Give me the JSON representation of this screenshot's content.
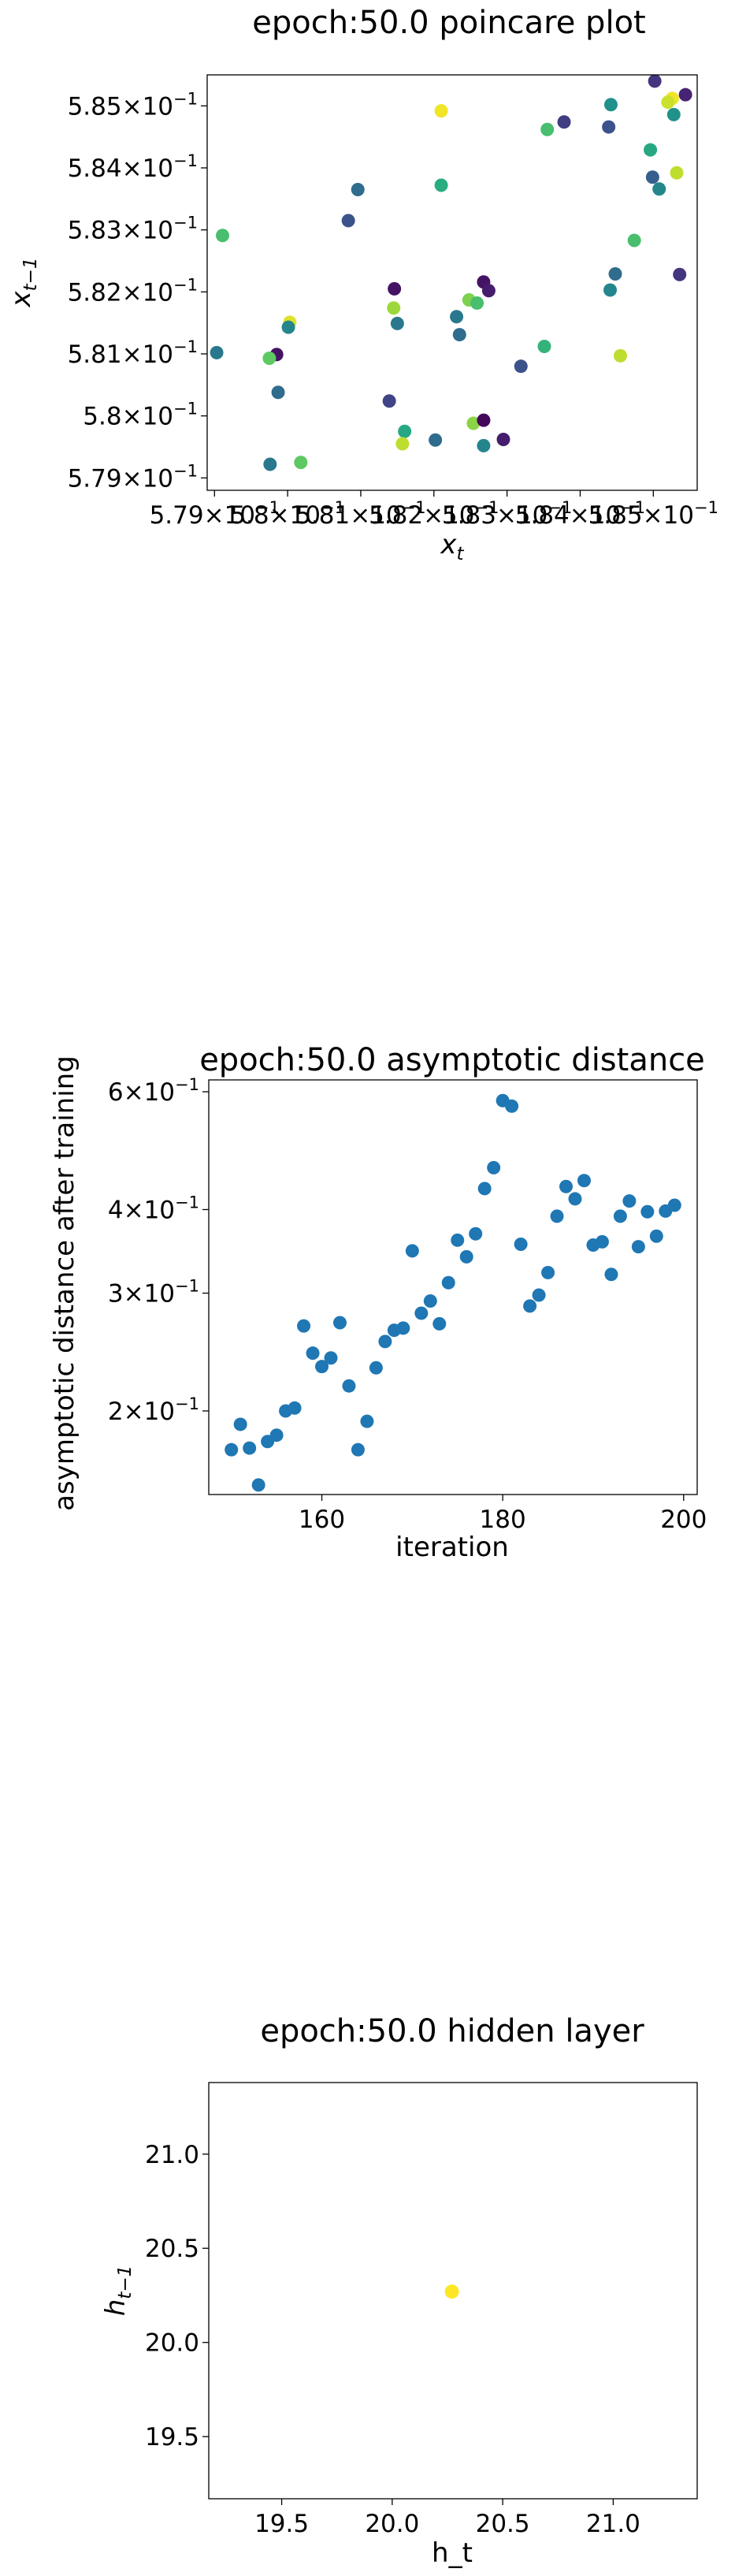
{
  "chart_data": [
    {
      "type": "scatter",
      "title": "epoch:50.0 poincare plot",
      "xlabel": "x_t",
      "ylabel": "x_{t-1}",
      "xlim": [
        0.5789,
        0.5856
      ],
      "ylim": [
        0.5788,
        0.5855
      ],
      "y_ticks": [
        {
          "value": 0.579,
          "mant": "5.79",
          "exp": "−1"
        },
        {
          "value": 0.58,
          "mant": "5.8",
          "exp": "−1"
        },
        {
          "value": 0.581,
          "mant": "5.81",
          "exp": "−1"
        },
        {
          "value": 0.582,
          "mant": "5.82",
          "exp": "−1"
        },
        {
          "value": 0.583,
          "mant": "5.83",
          "exp": "−1"
        },
        {
          "value": 0.584,
          "mant": "5.84",
          "exp": "−1"
        },
        {
          "value": 0.585,
          "mant": "5.85",
          "exp": "−1"
        }
      ],
      "x_ticks": [
        {
          "value": 0.579,
          "mant": "5.79",
          "exp": "−1"
        },
        {
          "value": 0.58,
          "mant": "5.8",
          "exp": "−1"
        },
        {
          "value": 0.581,
          "mant": "5.81",
          "exp": "−1"
        },
        {
          "value": 0.582,
          "mant": "5.82",
          "exp": "−1"
        },
        {
          "value": 0.583,
          "mant": "5.83",
          "exp": "−1"
        },
        {
          "value": 0.584,
          "mant": "5.84",
          "exp": "−1"
        },
        {
          "value": 0.585,
          "mant": "5.85",
          "exp": "−1"
        }
      ],
      "colormap": "viridis",
      "points": [
        {
          "x": 0.58502,
          "y": 0.5854,
          "c": 0.15
        },
        {
          "x": 0.58544,
          "y": 0.58518,
          "c": 0.1
        },
        {
          "x": 0.58526,
          "y": 0.58512,
          "c": 0.98
        },
        {
          "x": 0.5852,
          "y": 0.58506,
          "c": 0.92
        },
        {
          "x": 0.58528,
          "y": 0.58486,
          "c": 0.5
        },
        {
          "x": 0.58496,
          "y": 0.58429,
          "c": 0.6
        },
        {
          "x": 0.58532,
          "y": 0.58392,
          "c": 0.9
        },
        {
          "x": 0.58499,
          "y": 0.58385,
          "c": 0.3
        },
        {
          "x": 0.58508,
          "y": 0.58366,
          "c": 0.45
        },
        {
          "x": 0.58474,
          "y": 0.58283,
          "c": 0.7
        },
        {
          "x": 0.58536,
          "y": 0.58228,
          "c": 0.15
        },
        {
          "x": 0.58448,
          "y": 0.58229,
          "c": 0.35
        },
        {
          "x": 0.58441,
          "y": 0.58203,
          "c": 0.45
        },
        {
          "x": 0.58442,
          "y": 0.58502,
          "c": 0.5
        },
        {
          "x": 0.58439,
          "y": 0.58466,
          "c": 0.25
        },
        {
          "x": 0.58378,
          "y": 0.58474,
          "c": 0.18
        },
        {
          "x": 0.58355,
          "y": 0.58462,
          "c": 0.7
        },
        {
          "x": 0.58455,
          "y": 0.58097,
          "c": 0.9
        },
        {
          "x": 0.58351,
          "y": 0.58112,
          "c": 0.65
        },
        {
          "x": 0.58319,
          "y": 0.5808,
          "c": 0.25
        },
        {
          "x": 0.58268,
          "y": 0.58216,
          "c": 0.05
        },
        {
          "x": 0.58275,
          "y": 0.58202,
          "c": 0.08
        },
        {
          "x": 0.58248,
          "y": 0.58187,
          "c": 0.8
        },
        {
          "x": 0.58259,
          "y": 0.58182,
          "c": 0.7
        },
        {
          "x": 0.58231,
          "y": 0.5816,
          "c": 0.4
        },
        {
          "x": 0.58235,
          "y": 0.58131,
          "c": 0.35
        },
        {
          "x": 0.5821,
          "y": 0.58372,
          "c": 0.62
        },
        {
          "x": 0.5821,
          "y": 0.58492,
          "c": 0.98
        },
        {
          "x": 0.58145,
          "y": 0.58174,
          "c": 0.85
        },
        {
          "x": 0.58146,
          "y": 0.58205,
          "c": 0.05
        },
        {
          "x": 0.5815,
          "y": 0.58149,
          "c": 0.4
        },
        {
          "x": 0.58139,
          "y": 0.58024,
          "c": 0.2
        },
        {
          "x": 0.58254,
          "y": 0.57988,
          "c": 0.82
        },
        {
          "x": 0.58268,
          "y": 0.57993,
          "c": 0.02
        },
        {
          "x": 0.58268,
          "y": 0.57952,
          "c": 0.45
        },
        {
          "x": 0.58295,
          "y": 0.57962,
          "c": 0.08
        },
        {
          "x": 0.58202,
          "y": 0.57961,
          "c": 0.35
        },
        {
          "x": 0.5816,
          "y": 0.57975,
          "c": 0.6
        },
        {
          "x": 0.58157,
          "y": 0.57955,
          "c": 0.9
        },
        {
          "x": 0.58096,
          "y": 0.58365,
          "c": 0.35
        },
        {
          "x": 0.58083,
          "y": 0.58315,
          "c": 0.25
        },
        {
          "x": 0.57911,
          "y": 0.58291,
          "c": 0.7
        },
        {
          "x": 0.58003,
          "y": 0.58151,
          "c": 0.95
        },
        {
          "x": 0.58001,
          "y": 0.58143,
          "c": 0.45
        },
        {
          "x": 0.57903,
          "y": 0.58102,
          "c": 0.4
        },
        {
          "x": 0.57985,
          "y": 0.58099,
          "c": 0.05
        },
        {
          "x": 0.57975,
          "y": 0.58093,
          "c": 0.75
        },
        {
          "x": 0.57987,
          "y": 0.58038,
          "c": 0.35
        },
        {
          "x": 0.57976,
          "y": 0.57922,
          "c": 0.4
        },
        {
          "x": 0.58018,
          "y": 0.57925,
          "c": 0.75
        }
      ]
    },
    {
      "type": "scatter",
      "title": "epoch:50.0 asymptotic distance",
      "xlabel": "iteration",
      "ylabel": "asymptotic distance after training",
      "xlim": [
        147.5,
        201.5
      ],
      "ylim": [
        0.15,
        0.625
      ],
      "y_scale": "log",
      "color": "#1f77b4",
      "x_ticks": [
        {
          "value": 160,
          "label": "160"
        },
        {
          "value": 180,
          "label": "180"
        },
        {
          "value": 200,
          "label": "200"
        }
      ],
      "y_ticks": [
        {
          "value": 0.2,
          "mant": "2",
          "exp": "−1"
        },
        {
          "value": 0.3,
          "mant": "3",
          "exp": "−1"
        },
        {
          "value": 0.4,
          "mant": "4",
          "exp": "−1"
        },
        {
          "value": 0.6,
          "mant": "6",
          "exp": "−1"
        }
      ],
      "x": [
        150,
        151,
        152,
        153,
        154,
        155,
        156,
        157,
        158,
        159,
        160,
        161,
        162,
        163,
        164,
        165,
        166,
        167,
        168,
        169,
        170,
        171,
        172,
        173,
        174,
        175,
        176,
        177,
        178,
        179,
        180,
        181,
        182,
        183,
        184,
        185,
        186,
        187,
        188,
        189,
        190,
        191,
        192,
        193,
        194,
        195,
        196,
        197,
        198,
        199
      ],
      "y": [
        0.175,
        0.191,
        0.176,
        0.155,
        0.18,
        0.184,
        0.2,
        0.202,
        0.268,
        0.244,
        0.233,
        0.24,
        0.271,
        0.218,
        0.175,
        0.193,
        0.232,
        0.254,
        0.264,
        0.266,
        0.347,
        0.28,
        0.292,
        0.27,
        0.311,
        0.36,
        0.34,
        0.368,
        0.43,
        0.462,
        0.582,
        0.571,
        0.355,
        0.287,
        0.298,
        0.322,
        0.391,
        0.433,
        0.415,
        0.442,
        0.354,
        0.358,
        0.32,
        0.391,
        0.412,
        0.352,
        0.397,
        0.365,
        0.398,
        0.406
      ]
    },
    {
      "type": "scatter",
      "title": "epoch:50.0 hidden layer",
      "xlabel": "h_t",
      "ylabel": "h_{t-1}",
      "xlim": [
        19.17,
        21.38
      ],
      "ylim": [
        19.17,
        21.38
      ],
      "x_ticks": [
        {
          "value": 19.5,
          "label": "19.5"
        },
        {
          "value": 20.0,
          "label": "20.0"
        },
        {
          "value": 20.5,
          "label": "20.5"
        },
        {
          "value": 21.0,
          "label": "21.0"
        }
      ],
      "y_ticks": [
        {
          "value": 19.5,
          "label": "19.5"
        },
        {
          "value": 20.0,
          "label": "20.0"
        },
        {
          "value": 20.5,
          "label": "20.5"
        },
        {
          "value": 21.0,
          "label": "21.0"
        }
      ],
      "points": [
        {
          "x": 20.27,
          "y": 20.27,
          "c": 1.0
        }
      ]
    }
  ]
}
